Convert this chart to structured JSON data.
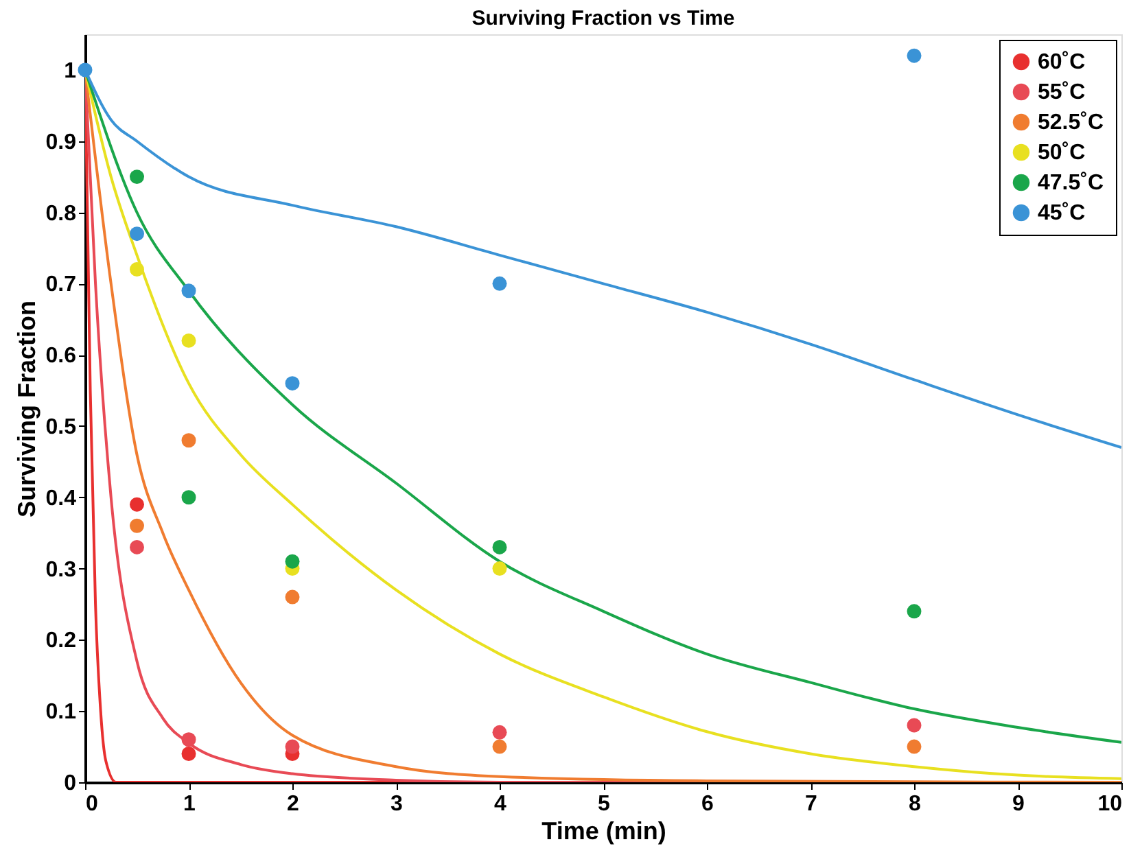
{
  "chart_data": {
    "type": "scatter",
    "title": "Surviving Fraction vs Time",
    "xlabel": "Time (min)",
    "ylabel": "Surviving Fraction",
    "xlim": [
      0,
      10
    ],
    "ylim": [
      0,
      1.05
    ],
    "xticks": [
      0,
      1,
      2,
      3,
      4,
      5,
      6,
      7,
      8,
      9,
      10
    ],
    "yticks": [
      0,
      0.1,
      0.2,
      0.3,
      0.4,
      0.5,
      0.6,
      0.7,
      0.8,
      0.9,
      1
    ],
    "grid": false,
    "legend": "top right",
    "marker": "circle",
    "series": [
      {
        "name": "60˚C",
        "color": "#e8302f",
        "x": [
          0.5,
          1,
          2
        ],
        "values": [
          0.39,
          0.04,
          0.04
        ]
      },
      {
        "name": "55˚C",
        "color": "#e84a55",
        "x": [
          0.5,
          1,
          2,
          4,
          8
        ],
        "values": [
          0.33,
          0.06,
          0.05,
          0.07,
          0.08
        ]
      },
      {
        "name": "52.5˚C",
        "color": "#f07c30",
        "x": [
          0.5,
          1,
          2,
          4,
          8
        ],
        "values": [
          0.36,
          0.48,
          0.26,
          0.05,
          0.05
        ]
      },
      {
        "name": "50˚C",
        "color": "#e8e020",
        "x": [
          0.5,
          1,
          2,
          4
        ],
        "values": [
          0.72,
          0.62,
          0.3,
          0.3
        ]
      },
      {
        "name": "47.5˚C",
        "color": "#1aa64a",
        "x": [
          0.5,
          1,
          2,
          4,
          8
        ],
        "values": [
          0.85,
          0.4,
          0.31,
          0.33,
          0.24
        ]
      },
      {
        "name": "45˚C",
        "color": "#3a93d6",
        "x": [
          0,
          0.5,
          1,
          2,
          4,
          8
        ],
        "values": [
          1,
          0.77,
          0.69,
          0.56,
          0.7,
          1.02
        ]
      },
      {
        "type": "line",
        "marker": "none",
        "color": "#e8302f",
        "x": [
          0,
          0.05,
          0.1,
          0.15,
          0.2,
          0.3,
          10
        ],
        "values": [
          1,
          0.55,
          0.25,
          0.1,
          0.03,
          0,
          0
        ]
      },
      {
        "type": "line",
        "marker": "none",
        "color": "#e84a55",
        "x": [
          0,
          0.1,
          0.25,
          0.5,
          0.75,
          1,
          1.5,
          2,
          3,
          4,
          10
        ],
        "values": [
          1,
          0.7,
          0.4,
          0.17,
          0.09,
          0.055,
          0.025,
          0.012,
          0.003,
          0,
          0
        ]
      },
      {
        "type": "line",
        "marker": "none",
        "color": "#f07c30",
        "x": [
          0,
          0.25,
          0.5,
          0.75,
          1,
          1.5,
          2,
          3,
          4,
          6,
          10
        ],
        "values": [
          1,
          0.7,
          0.46,
          0.35,
          0.27,
          0.14,
          0.066,
          0.022,
          0.008,
          0.002,
          0
        ]
      },
      {
        "type": "line",
        "marker": "none",
        "color": "#e8e020",
        "x": [
          0,
          0.25,
          0.5,
          1,
          1.5,
          2,
          3,
          4,
          5,
          6,
          7,
          8,
          9,
          10
        ],
        "values": [
          1,
          0.85,
          0.74,
          0.56,
          0.46,
          0.39,
          0.27,
          0.18,
          0.12,
          0.071,
          0.04,
          0.022,
          0.01,
          0.005
        ]
      },
      {
        "type": "line",
        "marker": "none",
        "color": "#1aa64a",
        "x": [
          0,
          0.5,
          1,
          2,
          3,
          4,
          5,
          6,
          7,
          8,
          9,
          10
        ],
        "values": [
          1,
          0.8,
          0.69,
          0.53,
          0.42,
          0.31,
          0.24,
          0.18,
          0.14,
          0.103,
          0.077,
          0.056
        ]
      },
      {
        "type": "line",
        "marker": "none",
        "color": "#3a93d6",
        "x": [
          0,
          0.25,
          0.5,
          1,
          2,
          3,
          4,
          5,
          6,
          7,
          8,
          9,
          10
        ],
        "values": [
          1,
          0.93,
          0.9,
          0.85,
          0.81,
          0.78,
          0.74,
          0.7,
          0.66,
          0.615,
          0.565,
          0.516,
          0.47
        ]
      }
    ]
  }
}
